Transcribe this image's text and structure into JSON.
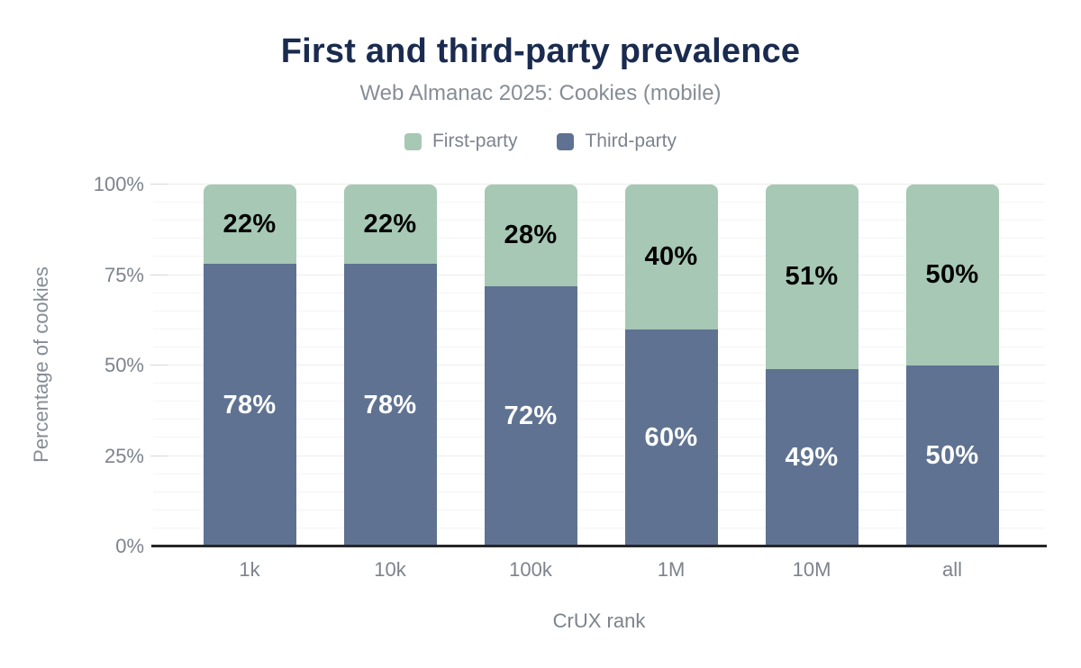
{
  "title": "First and third-party prevalence",
  "subtitle": "Web Almanac 2025: Cookies (mobile)",
  "colors": {
    "first_party": "#a6c8b5",
    "third_party": "#5f7291",
    "title_text": "#1a2b4f"
  },
  "legend": {
    "items": [
      {
        "label": "First-party",
        "color": "#a6c8b5"
      },
      {
        "label": "Third-party",
        "color": "#5f7291"
      }
    ]
  },
  "chart_data": {
    "type": "bar",
    "stacked": true,
    "title": "First and third-party prevalence",
    "subtitle": "Web Almanac 2025: Cookies (mobile)",
    "categories": [
      "1k",
      "10k",
      "100k",
      "1M",
      "10M",
      "all"
    ],
    "series": [
      {
        "name": "First-party",
        "color": "#a6c8b5",
        "values": [
          22,
          22,
          28,
          40,
          51,
          50
        ]
      },
      {
        "name": "Third-party",
        "color": "#5f7291",
        "values": [
          78,
          78,
          72,
          60,
          49,
          50
        ]
      }
    ],
    "value_suffix": "%",
    "xlabel": "CrUX rank",
    "ylabel": "Percentage of cookies",
    "ylim": [
      0,
      100
    ],
    "yticks": [
      {
        "label": "0%",
        "value": 0
      },
      {
        "label": "25%",
        "value": 25
      },
      {
        "label": "50%",
        "value": 50
      },
      {
        "label": "75%",
        "value": 75
      },
      {
        "label": "100%",
        "value": 100
      }
    ],
    "grid": {
      "minor_step": 5,
      "major_step": 25,
      "direction": "horizontal"
    },
    "legend_position": "top"
  }
}
